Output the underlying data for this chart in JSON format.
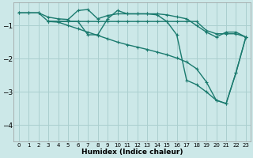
{
  "xlabel": "Humidex (Indice chaleur)",
  "ylabel": "",
  "bg_color": "#cce8e8",
  "grid_color": "#aacfcf",
  "line_color": "#1a7a6e",
  "xlim": [
    -0.5,
    23.5
  ],
  "ylim": [
    -4.5,
    -0.3
  ],
  "yticks": [
    -4,
    -3,
    -2,
    -1
  ],
  "xticks": [
    0,
    1,
    2,
    3,
    4,
    5,
    6,
    7,
    8,
    9,
    10,
    11,
    12,
    13,
    14,
    15,
    16,
    17,
    18,
    19,
    20,
    21,
    22,
    23
  ],
  "series1_x": [
    0,
    1,
    2,
    3,
    4,
    5,
    6,
    7,
    8,
    9,
    10,
    11,
    12,
    13,
    14,
    15,
    16,
    17,
    18,
    19,
    20,
    21,
    22,
    23
  ],
  "series1_y": [
    -0.62,
    -0.62,
    -0.62,
    -0.75,
    -0.8,
    -0.82,
    -0.55,
    -0.52,
    -0.8,
    -0.7,
    -0.65,
    -0.65,
    -0.65,
    -0.65,
    -0.65,
    -0.68,
    -0.74,
    -0.8,
    -1.0,
    -1.2,
    -1.35,
    -1.2,
    -1.2,
    -1.35
  ],
  "series2_x": [
    0,
    1,
    2,
    3,
    4,
    5,
    6,
    7,
    8,
    9,
    10,
    11,
    12,
    13,
    14,
    15,
    16,
    17,
    18,
    19,
    20,
    21,
    22,
    23
  ],
  "series2_y": [
    -0.62,
    -0.62,
    -0.62,
    -0.88,
    -0.88,
    -0.88,
    -0.88,
    -0.88,
    -0.88,
    -0.88,
    -0.88,
    -0.88,
    -0.88,
    -0.88,
    -0.88,
    -0.88,
    -0.88,
    -0.88,
    -0.88,
    -1.15,
    -1.25,
    -1.25,
    -1.25,
    -1.35
  ],
  "series3_x": [
    3,
    4,
    5,
    6,
    7,
    8,
    9,
    10,
    11,
    12,
    13,
    14,
    15,
    16,
    17,
    18,
    19,
    20,
    21,
    22,
    23
  ],
  "series3_y": [
    -0.88,
    -0.88,
    -0.88,
    -0.88,
    -1.28,
    -1.28,
    -0.8,
    -0.55,
    -0.65,
    -0.65,
    -0.65,
    -0.68,
    -0.88,
    -1.28,
    -2.65,
    -2.78,
    -3.0,
    -3.25,
    -3.35,
    -2.42,
    -1.35
  ],
  "series4_x": [
    3,
    4,
    5,
    6,
    7,
    8,
    9,
    10,
    11,
    12,
    13,
    14,
    15,
    16,
    17,
    18,
    19,
    20,
    21,
    22,
    23
  ],
  "series4_y": [
    -0.88,
    -0.9,
    -1.0,
    -1.1,
    -1.2,
    -1.3,
    -1.4,
    -1.5,
    -1.58,
    -1.65,
    -1.72,
    -1.8,
    -1.88,
    -1.98,
    -2.1,
    -2.3,
    -2.7,
    -3.25,
    -3.35,
    -2.42,
    -1.35
  ],
  "marker": "+"
}
